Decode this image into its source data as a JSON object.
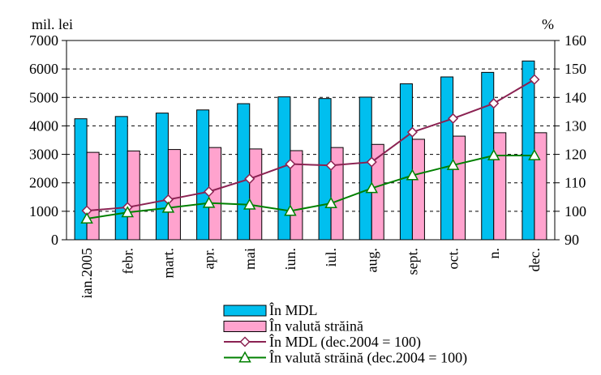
{
  "chart_data": {
    "type": "bar",
    "left_unit": "mil. lei",
    "right_unit": "%",
    "categories": [
      "ian.2005",
      "febr.",
      "mart.",
      "apr.",
      "mai",
      "iun.",
      "iul.",
      "aug.",
      "sept.",
      "oct.",
      "n.",
      "dec."
    ],
    "y_left": {
      "min": 0,
      "max": 7000,
      "step": 1000,
      "ticks": [
        "0",
        "1000",
        "2000",
        "3000",
        "4000",
        "5000",
        "6000",
        "7000"
      ]
    },
    "y_right": {
      "min": 90,
      "max": 160,
      "step": 10,
      "ticks": [
        "90",
        "100",
        "110",
        "120",
        "130",
        "140",
        "150",
        "160"
      ]
    },
    "grid": {
      "horizontal": true,
      "style": "dashed"
    },
    "legend_position": "bottom",
    "series": [
      {
        "name": "În MDL",
        "type": "bar",
        "axis": "left",
        "color": "#00BFEF",
        "values": [
          4250,
          4330,
          4450,
          4560,
          4780,
          5020,
          4960,
          5010,
          5480,
          5720,
          5880,
          6280
        ]
      },
      {
        "name": "În valută străină",
        "type": "bar",
        "axis": "left",
        "color": "#FFA3CE",
        "values": [
          3070,
          3120,
          3170,
          3240,
          3190,
          3130,
          3240,
          3350,
          3530,
          3640,
          3760,
          3760
        ]
      },
      {
        "name": "În MDL (dec.2004 = 100)",
        "type": "line",
        "axis": "right",
        "color": "#8B2252",
        "marker": "diamond",
        "values": [
          100.2,
          101.4,
          104.1,
          106.9,
          111.4,
          116.6,
          116.1,
          117.3,
          127.8,
          132.6,
          137.9,
          146.3
        ]
      },
      {
        "name": "În valută străină (dec.2004 = 100)",
        "type": "line",
        "axis": "right",
        "color": "#008000",
        "marker": "triangle",
        "values": [
          97.4,
          99.6,
          101.2,
          102.9,
          102.3,
          100.1,
          102.8,
          108.1,
          112.6,
          116.2,
          119.6,
          119.6
        ]
      }
    ]
  }
}
